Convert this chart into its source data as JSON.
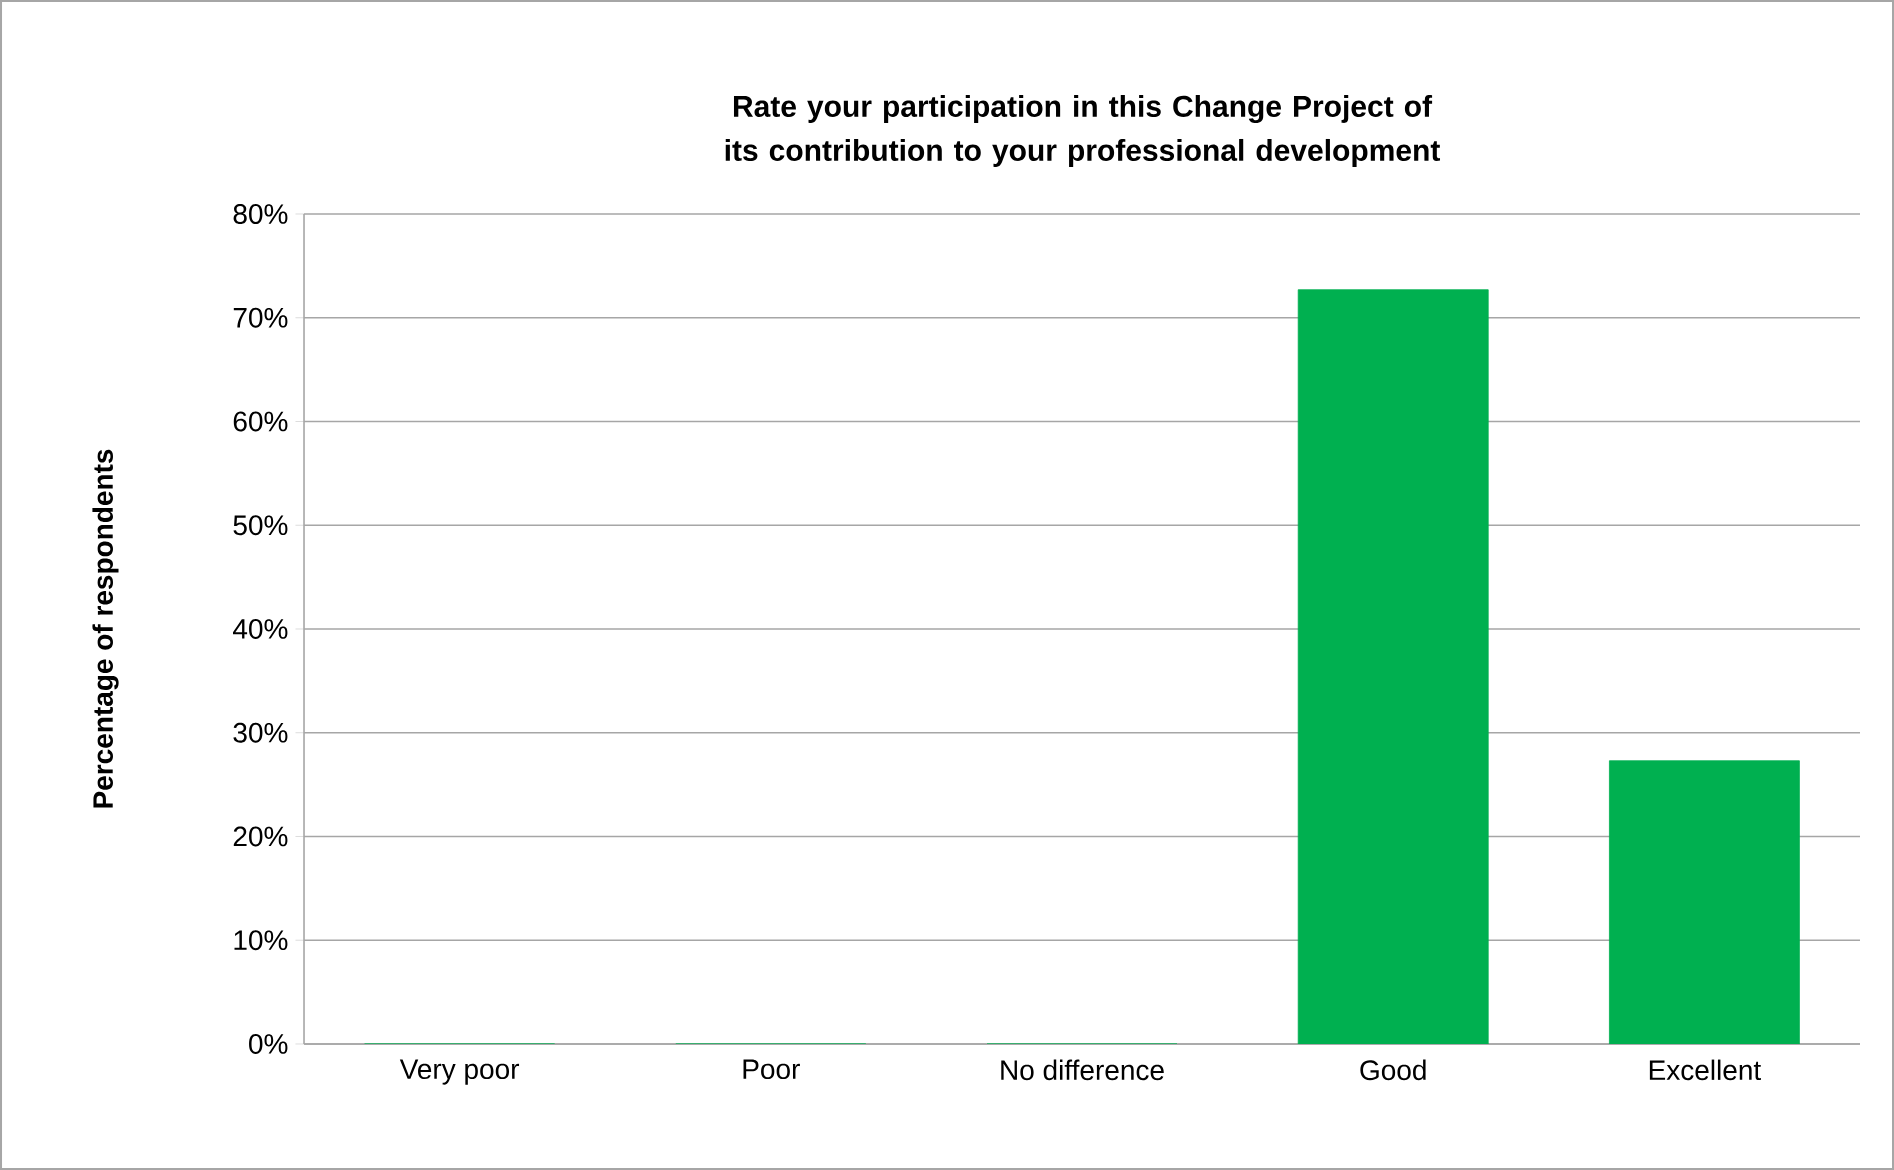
{
  "chart_data": {
    "type": "bar",
    "title": "Rate your participation in this Change Project of its contribution to your professional development",
    "ylabel": "Percentage of respondents",
    "categories": [
      "Very poor",
      "Poor",
      "No difference",
      "Good",
      "Excellent"
    ],
    "values": [
      0,
      0,
      0,
      72.7,
      27.3
    ],
    "color": "#00b050",
    "ylim": [
      0,
      80
    ],
    "yticks": [
      {
        "value": 0,
        "label": "0%"
      },
      {
        "value": 10,
        "label": "10%"
      },
      {
        "value": 20,
        "label": "20%"
      },
      {
        "value": 30,
        "label": "30%"
      },
      {
        "value": 40,
        "label": "40%"
      },
      {
        "value": 50,
        "label": "50%"
      },
      {
        "value": 60,
        "label": "60%"
      },
      {
        "value": 70,
        "label": "70%"
      },
      {
        "value": 80,
        "label": "80%"
      }
    ],
    "grid": "y"
  }
}
